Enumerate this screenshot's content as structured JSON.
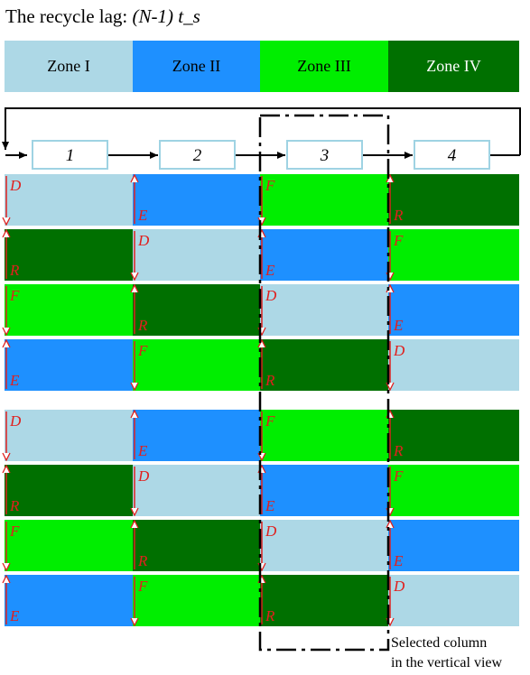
{
  "title": {
    "text": "The recycle lag: ",
    "formula": "(N-1) t_s"
  },
  "colors": {
    "light_blue": "#add8e6",
    "blue": "#1e90ff",
    "light_green": "#00ee00",
    "dark_green": "#007000",
    "arrow_red": "#e0201e",
    "box_border": "#9fd3e3"
  },
  "zones": [
    {
      "label": "Zone I",
      "color": "light_blue"
    },
    {
      "label": "Zone II",
      "color": "blue"
    },
    {
      "label": "Zone III",
      "color": "light_green"
    },
    {
      "label": "Zone IV",
      "color": "dark_green"
    }
  ],
  "steps": [
    "1",
    "2",
    "3",
    "4"
  ],
  "rows": [
    [
      "D",
      "E",
      "F",
      "R"
    ],
    [
      "R",
      "D",
      "E",
      "F"
    ],
    [
      "F",
      "R",
      "D",
      "E"
    ],
    [
      "E",
      "F",
      "R",
      "D"
    ],
    [
      "D",
      "E",
      "F",
      "R"
    ],
    [
      "R",
      "D",
      "E",
      "F"
    ],
    [
      "F",
      "R",
      "D",
      "E"
    ],
    [
      "E",
      "F",
      "R",
      "D"
    ]
  ],
  "letter_colors": {
    "D": "light_blue",
    "E": "blue",
    "F": "light_green",
    "R": "dark_green"
  },
  "caption": {
    "line1": "Selected column",
    "line2": "in the vertical view"
  }
}
